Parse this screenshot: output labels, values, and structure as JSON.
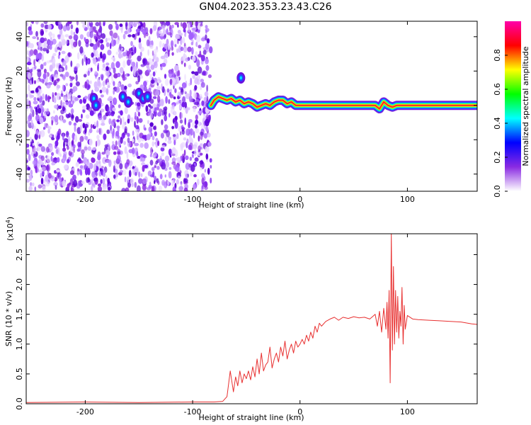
{
  "figure": {
    "title": "GN04.2023.353.23.43.C26"
  },
  "chart_data": [
    {
      "type": "heatmap",
      "xlabel": "Height of straight line (km)",
      "ylabel": "Frequency (Hz)",
      "xlim": [
        -255,
        165
      ],
      "ylim": [
        -50,
        49
      ],
      "xticks": [
        -200,
        -100,
        0,
        100
      ],
      "xtick_labels": [
        "-200",
        "-100",
        "0",
        "100"
      ],
      "yticks": [
        -40,
        -20,
        0,
        20,
        40
      ],
      "ytick_labels": [
        "-40",
        "-20",
        "0",
        "20",
        "40"
      ],
      "noise_region_x": [
        -255,
        -83
      ],
      "signal_start_x": -83,
      "ridge": {
        "x": [
          -83,
          -80,
          -76,
          -72,
          -68,
          -64,
          -60,
          -56,
          -52,
          -48,
          -44,
          -40,
          -36,
          -32,
          -28,
          -24,
          -20,
          -16,
          -12,
          -8,
          -4,
          0,
          20,
          40,
          60,
          70,
          74,
          78,
          82,
          86,
          90,
          100,
          120,
          140,
          165
        ],
        "y": [
          0,
          3,
          5,
          4,
          3,
          4,
          2,
          3,
          1,
          2,
          1,
          -1,
          0,
          1,
          0,
          2,
          3,
          3,
          1,
          2,
          0,
          0,
          0,
          0,
          0,
          0,
          -2,
          2,
          0,
          -1,
          0,
          0,
          0,
          0,
          0
        ]
      },
      "blobs": [
        {
          "x": -192,
          "y": 4
        },
        {
          "x": -190,
          "y": 0
        },
        {
          "x": -165,
          "y": 5
        },
        {
          "x": -160,
          "y": 2
        },
        {
          "x": -150,
          "y": 7
        },
        {
          "x": -146,
          "y": 4
        },
        {
          "x": -142,
          "y": 5
        },
        {
          "x": -55,
          "y": 16
        }
      ],
      "colorbar": {
        "label": "Normalized spectral amplitude",
        "range": [
          0,
          1
        ],
        "ticks": [
          0.0,
          0.2,
          0.4,
          0.6,
          0.8
        ],
        "tick_labels": [
          "0.0",
          "0.2",
          "0.4",
          "0.6",
          "0.8"
        ],
        "colors": [
          "#ffffff",
          "#8a2be2",
          "#0000ff",
          "#00ffff",
          "#00ff00",
          "#ffff00",
          "#ff0000",
          "#ff00aa"
        ]
      }
    },
    {
      "type": "line",
      "xlabel": "Height of straight line (km)",
      "ylabel": "SNR (10 * v/v)",
      "exponent_label": "(x10",
      "exponent_power": "4",
      "exponent_close": ")",
      "xlim": [
        -255,
        165
      ],
      "ylim": [
        0,
        2.85
      ],
      "xticks": [
        -200,
        -100,
        0,
        100
      ],
      "xtick_labels": [
        "-200",
        "-100",
        "0",
        "100"
      ],
      "yticks": [
        0.0,
        0.5,
        1.0,
        1.5,
        2.0,
        2.5
      ],
      "ytick_labels": [
        "0.0",
        "0.5",
        "1.0",
        "1.5",
        "2.0",
        "2.5"
      ],
      "color": "#e83030",
      "series": [
        {
          "x": [
            -255,
            -200,
            -150,
            -100,
            -80,
            -72,
            -68,
            -65,
            -62,
            -60,
            -58,
            -56,
            -54,
            -52,
            -50,
            -48,
            -46,
            -44,
            -42,
            -40,
            -38,
            -36,
            -34,
            -32,
            -30,
            -28,
            -26,
            -24,
            -22,
            -20,
            -18,
            -16,
            -14,
            -12,
            -10,
            -8,
            -6,
            -4,
            -2,
            0,
            2,
            4,
            6,
            8,
            10,
            12,
            14,
            16,
            18,
            20,
            24,
            28,
            32,
            36,
            40,
            45,
            50,
            55,
            60,
            65,
            70,
            72,
            74,
            76,
            78,
            80,
            81,
            82,
            83,
            84,
            85,
            86,
            87,
            88,
            89,
            90,
            91,
            92,
            93,
            94,
            95,
            96,
            97,
            98,
            100,
            105,
            110,
            120,
            130,
            140,
            150,
            160,
            165
          ],
          "y": [
            0.02,
            0.03,
            0.02,
            0.03,
            0.03,
            0.04,
            0.12,
            0.55,
            0.2,
            0.45,
            0.3,
            0.55,
            0.35,
            0.5,
            0.42,
            0.55,
            0.4,
            0.62,
            0.45,
            0.75,
            0.5,
            0.85,
            0.55,
            0.65,
            0.7,
            0.95,
            0.6,
            0.75,
            0.85,
            0.7,
            0.95,
            0.8,
            1.05,
            0.75,
            0.9,
            1.0,
            0.85,
            1.05,
            0.95,
            1.0,
            1.08,
            1.0,
            1.15,
            1.05,
            1.2,
            1.1,
            1.3,
            1.2,
            1.35,
            1.3,
            1.38,
            1.42,
            1.45,
            1.4,
            1.45,
            1.43,
            1.46,
            1.44,
            1.45,
            1.42,
            1.5,
            1.3,
            1.55,
            1.2,
            1.6,
            1.25,
            1.7,
            1.1,
            1.9,
            0.35,
            2.85,
            0.9,
            2.3,
            1.0,
            1.9,
            1.2,
            1.8,
            1.1,
            1.55,
            1.3,
            1.95,
            1.0,
            1.65,
            1.25,
            1.48,
            1.42,
            1.41,
            1.4,
            1.39,
            1.38,
            1.37,
            1.34,
            1.33
          ]
        }
      ]
    }
  ]
}
